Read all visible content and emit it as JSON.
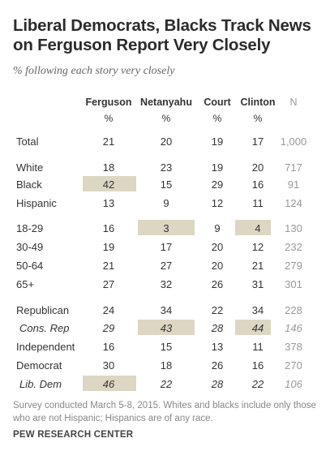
{
  "title": "Liberal Democrats, Blacks Track News on Ferguson Report Very Closely",
  "subtitle": "% following each story very closely",
  "chart_data": {
    "type": "table",
    "columns": [
      {
        "key": "ferguson",
        "label": "Ferguson",
        "unit": "%"
      },
      {
        "key": "netanyahu",
        "label": "Netanyahu",
        "unit": "%"
      },
      {
        "key": "court",
        "label": "Court",
        "unit": "%"
      },
      {
        "key": "clinton",
        "label": "Clinton",
        "unit": "%"
      },
      {
        "key": "n",
        "label": "N",
        "unit": ""
      }
    ],
    "rows": [
      {
        "label": "Total",
        "values": [
          "21",
          "20",
          "19",
          "17",
          "1,000"
        ],
        "highlight": [],
        "italic": false
      },
      {
        "label": "White",
        "values": [
          "18",
          "23",
          "19",
          "20",
          "717"
        ],
        "highlight": [],
        "italic": false
      },
      {
        "label": "Black",
        "values": [
          "42",
          "15",
          "29",
          "16",
          "91"
        ],
        "highlight": [
          0
        ],
        "italic": false
      },
      {
        "label": "Hispanic",
        "values": [
          "13",
          "9",
          "12",
          "11",
          "124"
        ],
        "highlight": [],
        "italic": false
      },
      {
        "label": "18-29",
        "values": [
          "16",
          "3",
          "9",
          "4",
          "130"
        ],
        "highlight": [
          1,
          3
        ],
        "italic": false
      },
      {
        "label": "30-49",
        "values": [
          "19",
          "17",
          "20",
          "12",
          "232"
        ],
        "highlight": [],
        "italic": false
      },
      {
        "label": "50-64",
        "values": [
          "21",
          "27",
          "20",
          "21",
          "279"
        ],
        "highlight": [],
        "italic": false
      },
      {
        "label": "65+",
        "values": [
          "27",
          "32",
          "26",
          "31",
          "301"
        ],
        "highlight": [],
        "italic": false
      },
      {
        "label": "Republican",
        "values": [
          "24",
          "34",
          "22",
          "34",
          "228"
        ],
        "highlight": [],
        "italic": false
      },
      {
        "label": "Cons. Rep",
        "values": [
          "29",
          "43",
          "28",
          "44",
          "146"
        ],
        "highlight": [
          1,
          3
        ],
        "italic": true
      },
      {
        "label": "Independent",
        "values": [
          "16",
          "15",
          "13",
          "11",
          "378"
        ],
        "highlight": [],
        "italic": false
      },
      {
        "label": "Democrat",
        "values": [
          "30",
          "18",
          "26",
          "16",
          "270"
        ],
        "highlight": [],
        "italic": false
      },
      {
        "label": "Lib. Dem",
        "values": [
          "46",
          "22",
          "28",
          "22",
          "106"
        ],
        "highlight": [
          0
        ],
        "italic": true
      }
    ]
  },
  "footnote": "Survey conducted March 5-8, 2015. Whites and blacks include only those who are not Hispanic; Hispanics are of any race.",
  "source": "PEW RESEARCH CENTER",
  "colors": {
    "highlight": "#ddd6c3",
    "n_text": "#999999"
  }
}
